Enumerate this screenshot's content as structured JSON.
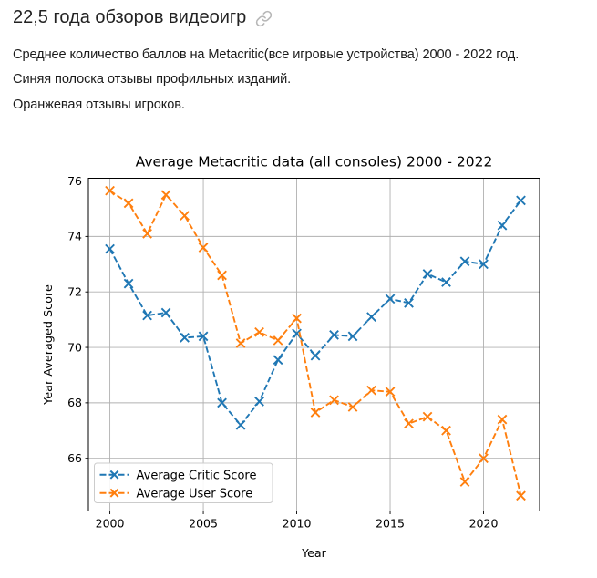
{
  "post": {
    "title": "22,5 года обзоров видеоигр",
    "link_icon": "link-icon",
    "description_lines": [
      "Среднее количество баллов на Metacritic(все игровые устройства) 2000 - 2022 год.",
      "Синяя полоска отзывы профильных изданий.",
      "Оранжевая отзывы игроков."
    ]
  },
  "colors": {
    "critic_blue": "#1f77b4",
    "user_orange": "#ff7f0e",
    "grid_gray": "#b0b0b0",
    "spine_black": "#000000",
    "icon_gray": "#b7b7b7"
  },
  "chart_data": {
    "type": "line",
    "title": "Average Metacritic data (all consoles) 2000 - 2022",
    "xlabel": "Year",
    "ylabel": "Year Averaged Score",
    "x": [
      2000,
      2001,
      2002,
      2003,
      2004,
      2005,
      2006,
      2007,
      2008,
      2009,
      2010,
      2011,
      2012,
      2013,
      2014,
      2015,
      2016,
      2017,
      2018,
      2019,
      2020,
      2021,
      2022
    ],
    "series": [
      {
        "name": "Average Critic Score",
        "color": "#1f77b4",
        "linestyle": "--",
        "marker": "x",
        "values": [
          73.55,
          72.3,
          71.15,
          71.25,
          70.35,
          70.4,
          68.0,
          67.2,
          68.05,
          69.55,
          70.5,
          69.7,
          70.45,
          70.4,
          71.1,
          71.75,
          71.6,
          72.65,
          72.35,
          73.1,
          73.0,
          74.4,
          75.3
        ]
      },
      {
        "name": "Average User Score",
        "color": "#ff7f0e",
        "linestyle": "--",
        "marker": "x",
        "values": [
          75.65,
          75.2,
          74.1,
          75.5,
          74.75,
          73.6,
          72.6,
          70.15,
          70.55,
          70.25,
          71.05,
          67.65,
          68.1,
          67.85,
          68.45,
          68.4,
          67.25,
          67.5,
          67.0,
          65.15,
          66.0,
          67.4,
          64.65
        ]
      }
    ],
    "xticks": [
      2000,
      2005,
      2010,
      2015,
      2020
    ],
    "yticks": [
      66,
      68,
      70,
      72,
      74,
      76
    ],
    "xlim": [
      1998.85,
      2023.0
    ],
    "ylim": [
      64.1,
      76.1
    ],
    "grid": true,
    "legend_position": "lower left"
  }
}
